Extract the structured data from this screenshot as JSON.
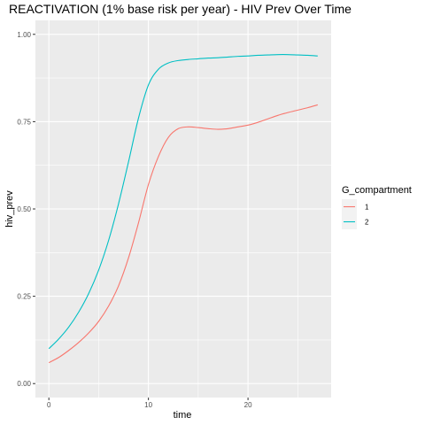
{
  "chart_data": {
    "type": "line",
    "title": "REACTIVATION (1% base risk per year) - HIV Prev Over Time",
    "xlabel": "time",
    "ylabel": "hiv_prev",
    "xlim": [
      -1.35,
      28.35
    ],
    "ylim": [
      -0.04,
      1.04
    ],
    "x_ticks": [
      0,
      10,
      20
    ],
    "x_tick_labels": [
      "0",
      "10",
      "20"
    ],
    "y_ticks": [
      0,
      0.25,
      0.5,
      0.75,
      1.0
    ],
    "y_tick_labels": [
      "0.00",
      "0.25",
      "0.50",
      "0.75",
      "1.00"
    ],
    "grid": true,
    "legend": {
      "title": "G_compartment",
      "position": "right"
    },
    "series": [
      {
        "name": "1",
        "color": "#F8766D",
        "x": [
          0,
          1,
          2,
          3,
          4,
          5,
          6,
          7,
          8,
          9,
          10,
          11,
          12,
          13,
          14,
          15,
          16,
          17,
          18,
          19,
          20,
          21,
          22,
          23,
          24,
          25,
          26,
          27
        ],
        "y": [
          0.06,
          0.075,
          0.095,
          0.118,
          0.145,
          0.178,
          0.222,
          0.28,
          0.36,
          0.46,
          0.57,
          0.65,
          0.705,
          0.73,
          0.735,
          0.733,
          0.73,
          0.728,
          0.73,
          0.735,
          0.74,
          0.748,
          0.758,
          0.768,
          0.776,
          0.783,
          0.79,
          0.798
        ]
      },
      {
        "name": "2",
        "color": "#00BFC4",
        "x": [
          0,
          1,
          2,
          3,
          4,
          5,
          6,
          7,
          8,
          9,
          10,
          11,
          12,
          13,
          14,
          15,
          16,
          17,
          18,
          19,
          20,
          21,
          22,
          23,
          24,
          25,
          26,
          27
        ],
        "y": [
          0.1,
          0.128,
          0.162,
          0.205,
          0.258,
          0.325,
          0.41,
          0.515,
          0.635,
          0.76,
          0.855,
          0.9,
          0.918,
          0.925,
          0.928,
          0.93,
          0.932,
          0.933,
          0.935,
          0.937,
          0.938,
          0.94,
          0.941,
          0.942,
          0.942,
          0.941,
          0.94,
          0.938
        ]
      }
    ]
  }
}
